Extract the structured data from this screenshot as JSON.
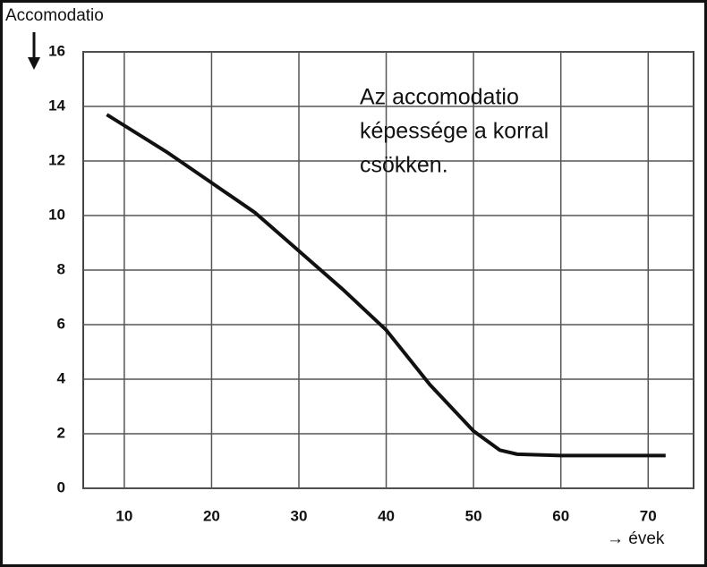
{
  "chart_data": {
    "type": "line",
    "y_label": "Accomodatio",
    "x_label": "→ évek",
    "annotation": [
      "Az accomodatio",
      "képessége a korral",
      "csökken."
    ],
    "x": [
      8,
      15,
      20,
      25,
      30,
      35,
      40,
      45,
      50,
      53,
      55,
      60,
      65,
      72
    ],
    "series": [
      {
        "color": "#111111",
        "values": [
          13.7,
          12.3,
          11.2,
          10.1,
          8.7,
          7.3,
          5.8,
          3.8,
          2.1,
          1.4,
          1.25,
          1.2,
          1.2,
          1.2
        ]
      }
    ],
    "xlim": [
      5.3,
      75.2
    ],
    "xticks": [
      10,
      20,
      30,
      40,
      50,
      60,
      70
    ],
    "ylim": [
      0,
      16
    ],
    "yticks": [
      0,
      2,
      4,
      6,
      8,
      10,
      12,
      14,
      16
    ],
    "grid": true
  }
}
